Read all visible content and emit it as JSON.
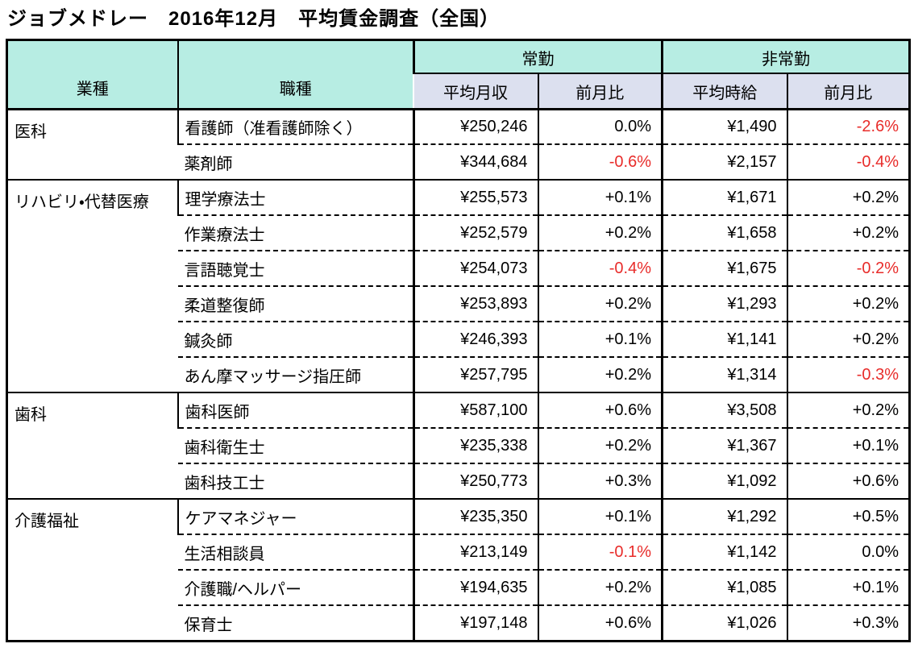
{
  "title": "ジョブメドレー　2016年12月　平均賃金調査（全国）",
  "colors": {
    "header_teal": "#b7ede3",
    "subheader_lavender": "#dce0ef",
    "negative_red": "#e82c2a",
    "border_black": "#000000"
  },
  "table": {
    "headers": {
      "industry": "業種",
      "occupation": "職種",
      "fulltime": "常勤",
      "parttime": "非常勤",
      "avg_monthly": "平均月収",
      "mom_fulltime": "前月比",
      "avg_hourly": "平均時給",
      "mom_parttime": "前月比"
    },
    "groups": [
      {
        "industry": "医科",
        "rows": [
          {
            "occupation": "看護師（准看護師除く）",
            "monthly": "¥250,246",
            "monthly_mom": "0.0%",
            "hourly": "¥1,490",
            "hourly_mom": "-2.6%"
          },
          {
            "occupation": "薬剤師",
            "monthly": "¥344,684",
            "monthly_mom": "-0.6%",
            "hourly": "¥2,157",
            "hourly_mom": "-0.4%"
          }
        ]
      },
      {
        "industry": "リハビリ・代替医療",
        "rows": [
          {
            "occupation": "理学療法士",
            "monthly": "¥255,573",
            "monthly_mom": "+0.1%",
            "hourly": "¥1,671",
            "hourly_mom": "+0.2%"
          },
          {
            "occupation": "作業療法士",
            "monthly": "¥252,579",
            "monthly_mom": "+0.2%",
            "hourly": "¥1,658",
            "hourly_mom": "+0.2%"
          },
          {
            "occupation": "言語聴覚士",
            "monthly": "¥254,073",
            "monthly_mom": "-0.4%",
            "hourly": "¥1,675",
            "hourly_mom": "-0.2%"
          },
          {
            "occupation": "柔道整復師",
            "monthly": "¥253,893",
            "monthly_mom": "+0.2%",
            "hourly": "¥1,293",
            "hourly_mom": "+0.2%"
          },
          {
            "occupation": "鍼灸師",
            "monthly": "¥246,393",
            "monthly_mom": "+0.1%",
            "hourly": "¥1,141",
            "hourly_mom": "+0.2%"
          },
          {
            "occupation": "あん摩マッサージ指圧師",
            "monthly": "¥257,795",
            "monthly_mom": "+0.2%",
            "hourly": "¥1,314",
            "hourly_mom": "-0.3%"
          }
        ]
      },
      {
        "industry": "歯科",
        "rows": [
          {
            "occupation": "歯科医師",
            "monthly": "¥587,100",
            "monthly_mom": "+0.6%",
            "hourly": "¥3,508",
            "hourly_mom": "+0.2%"
          },
          {
            "occupation": "歯科衛生士",
            "monthly": "¥235,338",
            "monthly_mom": "+0.2%",
            "hourly": "¥1,367",
            "hourly_mom": "+0.1%"
          },
          {
            "occupation": "歯科技工士",
            "monthly": "¥250,773",
            "monthly_mom": "+0.3%",
            "hourly": "¥1,092",
            "hourly_mom": "+0.6%"
          }
        ]
      },
      {
        "industry": "介護福祉",
        "rows": [
          {
            "occupation": "ケアマネジャー",
            "monthly": "¥235,350",
            "monthly_mom": "+0.1%",
            "hourly": "¥1,292",
            "hourly_mom": "+0.5%"
          },
          {
            "occupation": "生活相談員",
            "monthly": "¥213,149",
            "monthly_mom": "-0.1%",
            "hourly": "¥1,142",
            "hourly_mom": "0.0%"
          },
          {
            "occupation": "介護職/ヘルパー",
            "monthly": "¥194,635",
            "monthly_mom": "+0.2%",
            "hourly": "¥1,085",
            "hourly_mom": "+0.1%"
          },
          {
            "occupation": "保育士",
            "monthly": "¥197,148",
            "monthly_mom": "+0.6%",
            "hourly": "¥1,026",
            "hourly_mom": "+0.3%"
          }
        ]
      }
    ]
  },
  "chart_data": {
    "type": "table",
    "title": "ジョブメドレー　2016年12月　平均賃金調査（全国）",
    "columns": [
      "業種",
      "職種",
      "常勤 平均月収(円)",
      "常勤 前月比(%)",
      "非常勤 平均時給(円)",
      "非常勤 前月比(%)"
    ],
    "rows": [
      [
        "医科",
        "看護師（准看護師除く）",
        250246,
        0.0,
        1490,
        -2.6
      ],
      [
        "医科",
        "薬剤師",
        344684,
        -0.6,
        2157,
        -0.4
      ],
      [
        "リハビリ・代替医療",
        "理学療法士",
        255573,
        0.1,
        1671,
        0.2
      ],
      [
        "リハビリ・代替医療",
        "作業療法士",
        252579,
        0.2,
        1658,
        0.2
      ],
      [
        "リハビリ・代替医療",
        "言語聴覚士",
        254073,
        -0.4,
        1675,
        -0.2
      ],
      [
        "リハビリ・代替医療",
        "柔道整復師",
        253893,
        0.2,
        1293,
        0.2
      ],
      [
        "リハビリ・代替医療",
        "鍼灸師",
        246393,
        0.1,
        1141,
        0.2
      ],
      [
        "リハビリ・代替医療",
        "あん摩マッサージ指圧師",
        257795,
        0.2,
        1314,
        -0.3
      ],
      [
        "歯科",
        "歯科医師",
        587100,
        0.6,
        3508,
        0.2
      ],
      [
        "歯科",
        "歯科衛生士",
        235338,
        0.2,
        1367,
        0.1
      ],
      [
        "歯科",
        "歯科技工士",
        250773,
        0.3,
        1092,
        0.6
      ],
      [
        "介護福祉",
        "ケアマネジャー",
        235350,
        0.1,
        1292,
        0.5
      ],
      [
        "介護福祉",
        "生活相談員",
        213149,
        -0.1,
        1142,
        0.0
      ],
      [
        "介護福祉",
        "介護職/ヘルパー",
        194635,
        0.2,
        1085,
        0.1
      ],
      [
        "介護福祉",
        "保育士",
        197148,
        0.6,
        1026,
        0.3
      ]
    ]
  }
}
